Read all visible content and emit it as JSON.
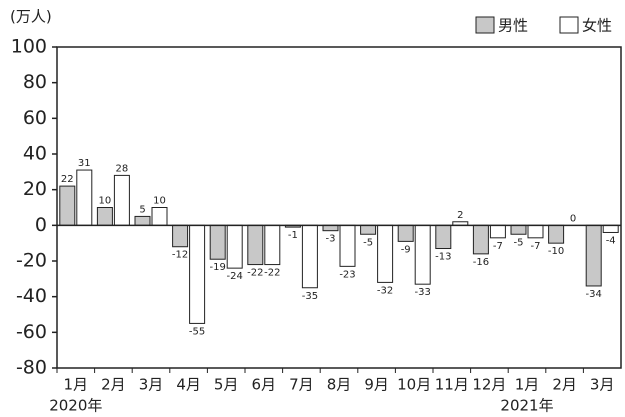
{
  "chart_data": {
    "type": "bar",
    "ylabel": "(万人)",
    "categories": [
      "1月",
      "2月",
      "3月",
      "4月",
      "5月",
      "6月",
      "7月",
      "8月",
      "9月",
      "10月",
      "11月",
      "12月",
      "1月",
      "2月",
      "3月"
    ],
    "annotations": [
      "2020年",
      "2021年"
    ],
    "series": [
      {
        "name": "男性",
        "color": "#c8c8c8",
        "values": [
          22,
          10,
          5,
          -12,
          -19,
          -22,
          -1,
          -3,
          -5,
          -9,
          -13,
          -16,
          -5,
          -10,
          -34
        ]
      },
      {
        "name": "女性",
        "color": "#ffffff",
        "values": [
          31,
          28,
          10,
          -55,
          -24,
          -22,
          -35,
          -23,
          -32,
          -33,
          2,
          -7,
          -7,
          0,
          -4
        ]
      }
    ],
    "ylim": [
      -80,
      100
    ],
    "yticks": [
      -80,
      -60,
      -40,
      -20,
      0,
      20,
      40,
      60,
      80,
      100
    ]
  }
}
